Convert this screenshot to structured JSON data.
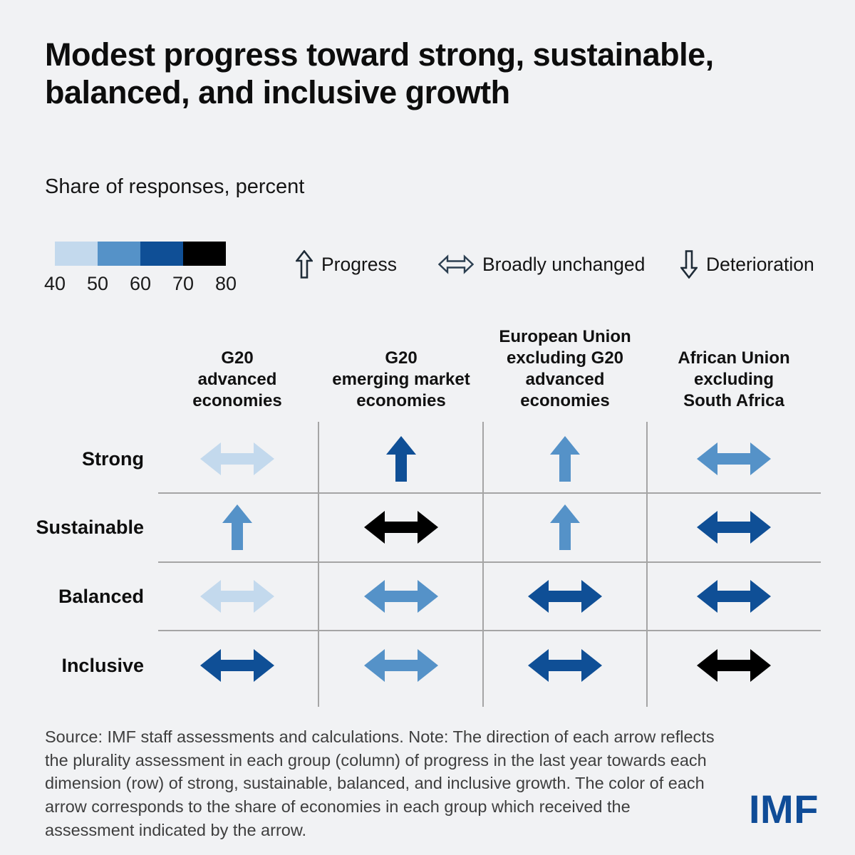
{
  "title": "Modest progress toward strong, sustainable,\nbalanced, and inclusive growth",
  "subtitle": "Share of responses, percent",
  "color_legend": {
    "ticks": [
      "40",
      "50",
      "60",
      "70",
      "80"
    ],
    "buckets": [
      {
        "range": "40-50",
        "color": "#c3d9ed"
      },
      {
        "range": "50-60",
        "color": "#5592c8"
      },
      {
        "range": "60-70",
        "color": "#0f4f96"
      },
      {
        "range": "70-80",
        "color": "#000000"
      }
    ]
  },
  "arrow_legend": {
    "icon_color": "#1f2c38",
    "progress": "Progress",
    "unchanged": "Broadly unchanged",
    "deterioration": "Deterioration"
  },
  "chart_data": {
    "type": "heatmap",
    "title": "Modest progress toward strong, sustainable, balanced, and inclusive growth",
    "units": "Share of responses, percent",
    "legend_scale_ticks": [
      40,
      50,
      60,
      70,
      80
    ],
    "color_scale": {
      "40-50": "#c3d9ed",
      "50-60": "#5592c8",
      "60-70": "#0f4f96",
      "70-80": "#000000"
    },
    "columns": [
      "G20 advanced economies",
      "G20 emerging market economies",
      "European Union excluding G20 advanced economies",
      "African Union excluding South Africa"
    ],
    "column_labels": [
      "G20\nadvanced\neconomies",
      "G20\nemerging market\neconomies",
      "European Union\nexcluding G20\nadvanced\neconomies",
      "African Union\nexcluding\nSouth Africa"
    ],
    "rows": [
      "Strong",
      "Sustainable",
      "Balanced",
      "Inclusive"
    ],
    "cells": [
      [
        {
          "direction": "broadly unchanged",
          "share_range": "40-50"
        },
        {
          "direction": "progress",
          "share_range": "60-70"
        },
        {
          "direction": "progress",
          "share_range": "50-60"
        },
        {
          "direction": "broadly unchanged",
          "share_range": "50-60"
        }
      ],
      [
        {
          "direction": "progress",
          "share_range": "50-60"
        },
        {
          "direction": "broadly unchanged",
          "share_range": "70-80"
        },
        {
          "direction": "progress",
          "share_range": "50-60"
        },
        {
          "direction": "broadly unchanged",
          "share_range": "60-70"
        }
      ],
      [
        {
          "direction": "broadly unchanged",
          "share_range": "40-50"
        },
        {
          "direction": "broadly unchanged",
          "share_range": "50-60"
        },
        {
          "direction": "broadly unchanged",
          "share_range": "60-70"
        },
        {
          "direction": "broadly unchanged",
          "share_range": "60-70"
        }
      ],
      [
        {
          "direction": "broadly unchanged",
          "share_range": "60-70"
        },
        {
          "direction": "broadly unchanged",
          "share_range": "50-60"
        },
        {
          "direction": "broadly unchanged",
          "share_range": "60-70"
        },
        {
          "direction": "broadly unchanged",
          "share_range": "70-80"
        }
      ]
    ]
  },
  "footnote": "Source: IMF staff assessments and calculations. Note: The direction of each arrow reflects\nthe plurality assessment in each group (column) of progress in the last year towards each\ndimension (row) of strong, sustainable, balanced, and inclusive growth. The color of each\narrow corresponds to the share of economies in each group which received the\nassessment indicated by the arrow.",
  "logo_text": "IMF",
  "logo_color": "#0f4c97"
}
